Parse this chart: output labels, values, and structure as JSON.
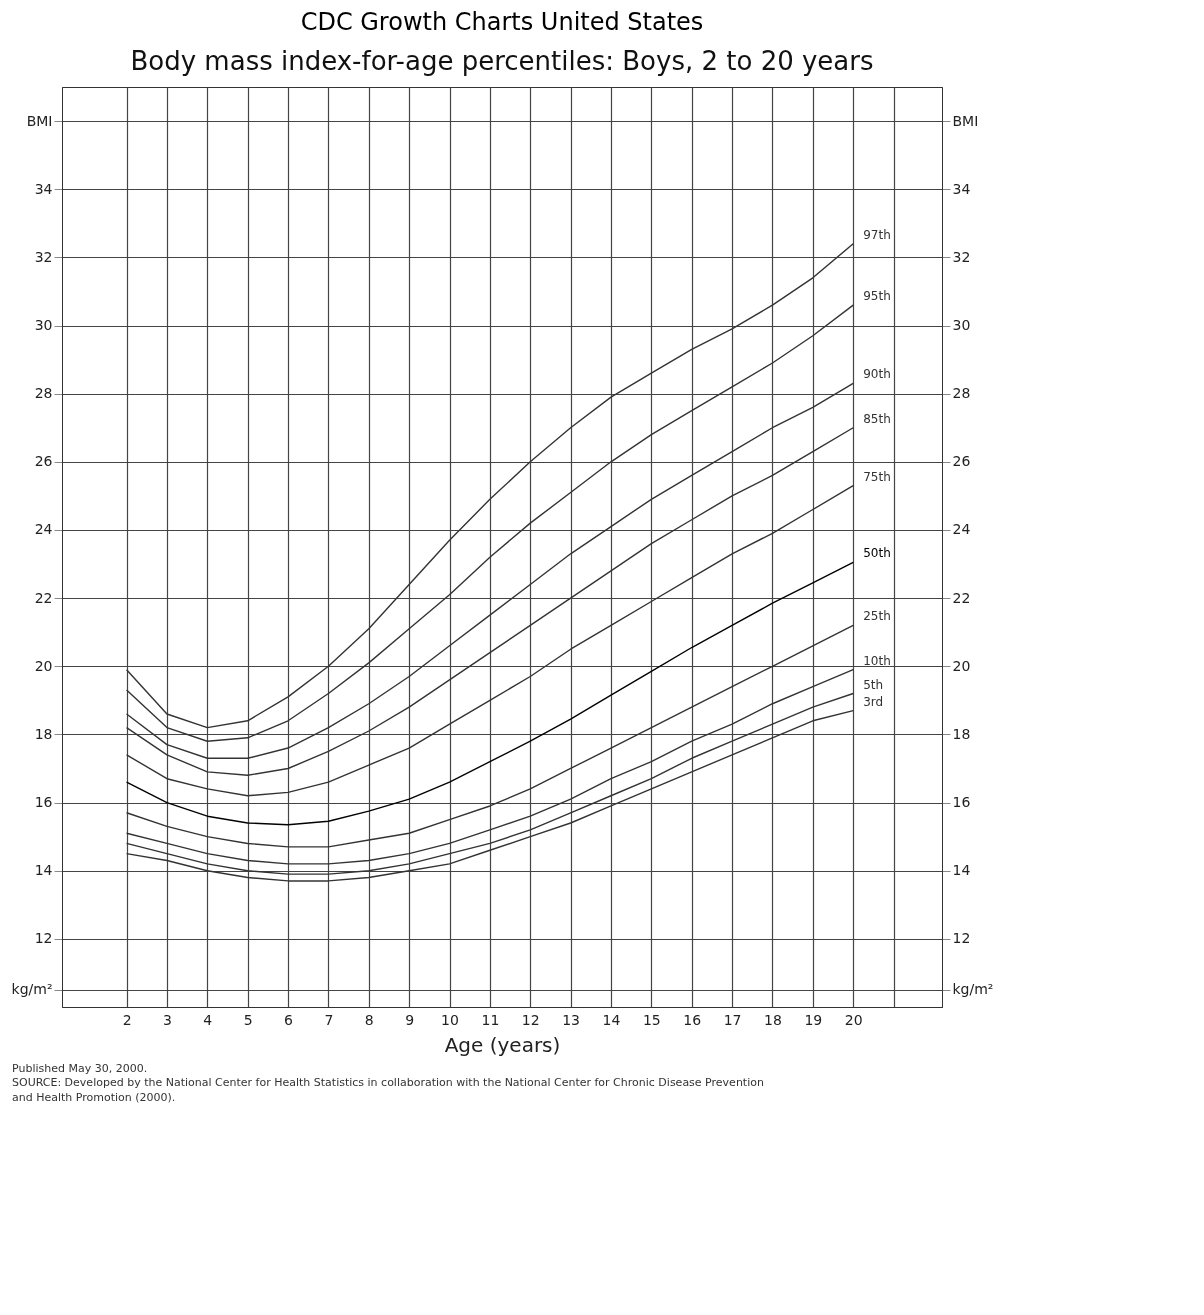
{
  "chart_data": {
    "type": "line",
    "title": "CDC Growth Charts United States",
    "subtitle": "Body mass index-for-age percentiles: Boys, 2 to 20 years",
    "xlabel": "Age (years)",
    "x": [
      2,
      3,
      4,
      5,
      6,
      7,
      8,
      9,
      10,
      11,
      12,
      13,
      14,
      15,
      16,
      17,
      18,
      19,
      20
    ],
    "xlim": [
      0.4,
      22.2
    ],
    "xticks": [
      2,
      3,
      4,
      5,
      6,
      7,
      8,
      9,
      10,
      11,
      12,
      13,
      14,
      15,
      16,
      17,
      18,
      19,
      20,
      {
        "value": 21,
        "label": null
      }
    ],
    "ylim": [
      10,
      37
    ],
    "yticks": [
      {
        "value": 10.5,
        "label": "kg/m²"
      },
      12,
      14,
      16,
      18,
      20,
      22,
      24,
      26,
      28,
      30,
      32,
      34,
      {
        "value": 36,
        "label": "BMI"
      }
    ],
    "y2lim": [
      10,
      37
    ],
    "y2ticks": [
      {
        "value": 10.5,
        "label": "kg/m²"
      },
      12,
      14,
      16,
      18,
      20,
      22,
      24,
      26,
      28,
      30,
      32,
      34,
      {
        "value": 36,
        "label": "BMI"
      }
    ],
    "grid": true,
    "legend": false,
    "marker": "none",
    "line_style": "solid",
    "series": [
      {
        "name": "97th",
        "color": "#333333",
        "values": [
          19.9,
          18.6,
          18.2,
          18.4,
          19.1,
          20.0,
          21.1,
          22.4,
          23.7,
          24.9,
          26.0,
          27.0,
          27.9,
          28.6,
          29.3,
          29.9,
          30.6,
          31.4,
          32.4
        ]
      },
      {
        "name": "95th",
        "color": "#333333",
        "values": [
          19.3,
          18.2,
          17.8,
          17.9,
          18.4,
          19.2,
          20.1,
          21.1,
          22.1,
          23.2,
          24.2,
          25.1,
          26.0,
          26.8,
          27.5,
          28.2,
          28.9,
          29.7,
          30.6
        ]
      },
      {
        "name": "90th",
        "color": "#333333",
        "values": [
          18.6,
          17.7,
          17.3,
          17.3,
          17.6,
          18.2,
          18.9,
          19.7,
          20.6,
          21.5,
          22.4,
          23.3,
          24.1,
          24.9,
          25.6,
          26.3,
          27.0,
          27.6,
          28.3
        ]
      },
      {
        "name": "85th",
        "color": "#333333",
        "values": [
          18.2,
          17.4,
          16.9,
          16.8,
          17.0,
          17.5,
          18.1,
          18.8,
          19.6,
          20.4,
          21.2,
          22.0,
          22.8,
          23.6,
          24.3,
          25.0,
          25.6,
          26.3,
          27.0
        ]
      },
      {
        "name": "75th",
        "color": "#333333",
        "values": [
          17.4,
          16.7,
          16.4,
          16.2,
          16.3,
          16.6,
          17.1,
          17.6,
          18.3,
          19.0,
          19.7,
          20.5,
          21.2,
          21.9,
          22.6,
          23.3,
          23.9,
          24.6,
          25.3
        ]
      },
      {
        "name": "50th",
        "color": "#000000",
        "values": [
          16.6,
          16.0,
          15.6,
          15.4,
          15.35,
          15.45,
          15.75,
          16.1,
          16.6,
          17.2,
          17.8,
          18.45,
          19.15,
          19.85,
          20.55,
          21.2,
          21.85,
          22.45,
          23.05
        ]
      },
      {
        "name": "25th",
        "color": "#333333",
        "values": [
          15.7,
          15.3,
          15.0,
          14.8,
          14.7,
          14.7,
          14.9,
          15.1,
          15.5,
          15.9,
          16.4,
          17.0,
          17.6,
          18.2,
          18.8,
          19.4,
          20.0,
          20.6,
          21.2
        ]
      },
      {
        "name": "10th",
        "color": "#333333",
        "values": [
          15.1,
          14.8,
          14.5,
          14.3,
          14.2,
          14.2,
          14.3,
          14.5,
          14.8,
          15.2,
          15.6,
          16.1,
          16.7,
          17.2,
          17.8,
          18.3,
          18.9,
          19.4,
          19.9
        ]
      },
      {
        "name": "5th",
        "color": "#333333",
        "values": [
          14.8,
          14.5,
          14.2,
          14.0,
          13.9,
          13.9,
          14.0,
          14.2,
          14.5,
          14.8,
          15.2,
          15.7,
          16.2,
          16.7,
          17.3,
          17.8,
          18.3,
          18.8,
          19.2
        ]
      },
      {
        "name": "3rd",
        "color": "#333333",
        "values": [
          14.5,
          14.3,
          14.0,
          13.8,
          13.7,
          13.7,
          13.8,
          14.0,
          14.2,
          14.6,
          15.0,
          15.4,
          15.9,
          16.4,
          16.9,
          17.4,
          17.9,
          18.4,
          18.7
        ]
      }
    ],
    "annotations": [
      "Published May 30, 2000.",
      "SOURCE: Developed by the National Center for Health Statistics in collaboration with the National Center for Chronic Disease Prevention and Health Promotion (2000)."
    ]
  }
}
